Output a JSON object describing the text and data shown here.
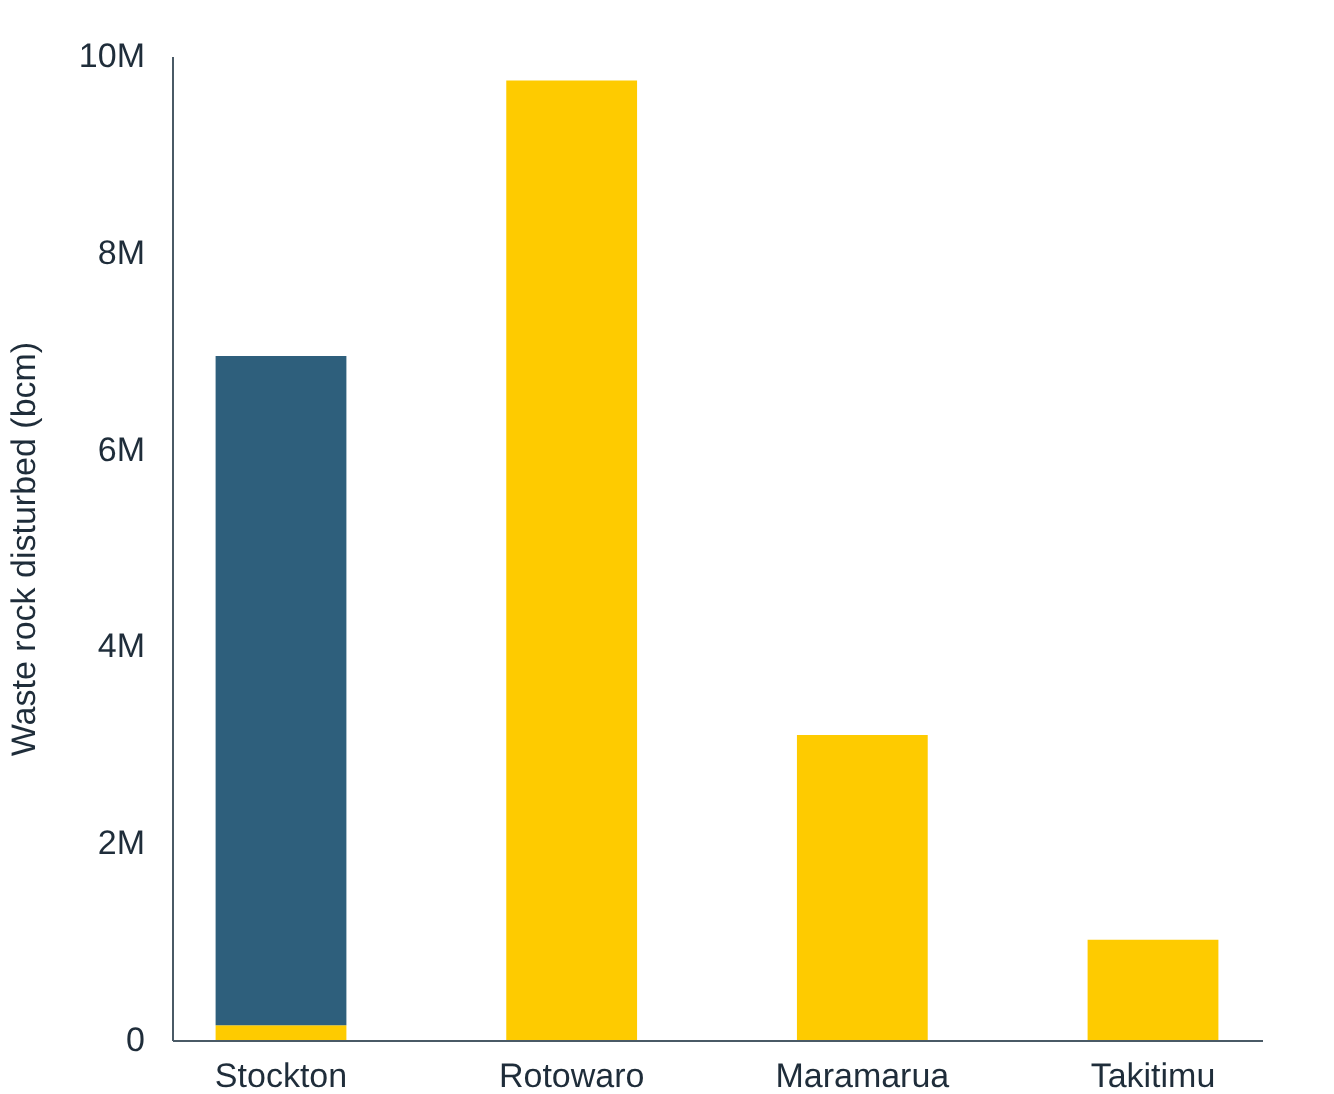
{
  "chart_data": {
    "type": "bar",
    "stacked": true,
    "ylabel": "Waste rock disturbed (bcm)",
    "categories": [
      "Stockton",
      "Rotowaro",
      "Maramarua",
      "Takitimu"
    ],
    "series": [
      {
        "color": "#fecb00",
        "values": [
          150000,
          9750000,
          3100000,
          1020000
        ]
      },
      {
        "color": "#2e5f7c",
        "values": [
          6800000,
          null,
          null,
          null
        ]
      }
    ],
    "ylim": [
      0,
      10000000
    ],
    "yticks": [
      0,
      {
        "value": 2000000,
        "label": "2M"
      },
      {
        "value": 4000000,
        "label": "4M"
      },
      {
        "value": 6000000,
        "label": "6M"
      },
      {
        "value": 8000000,
        "label": "8M"
      },
      {
        "value": 10000000,
        "label": "10M"
      }
    ],
    "grid": false
  }
}
